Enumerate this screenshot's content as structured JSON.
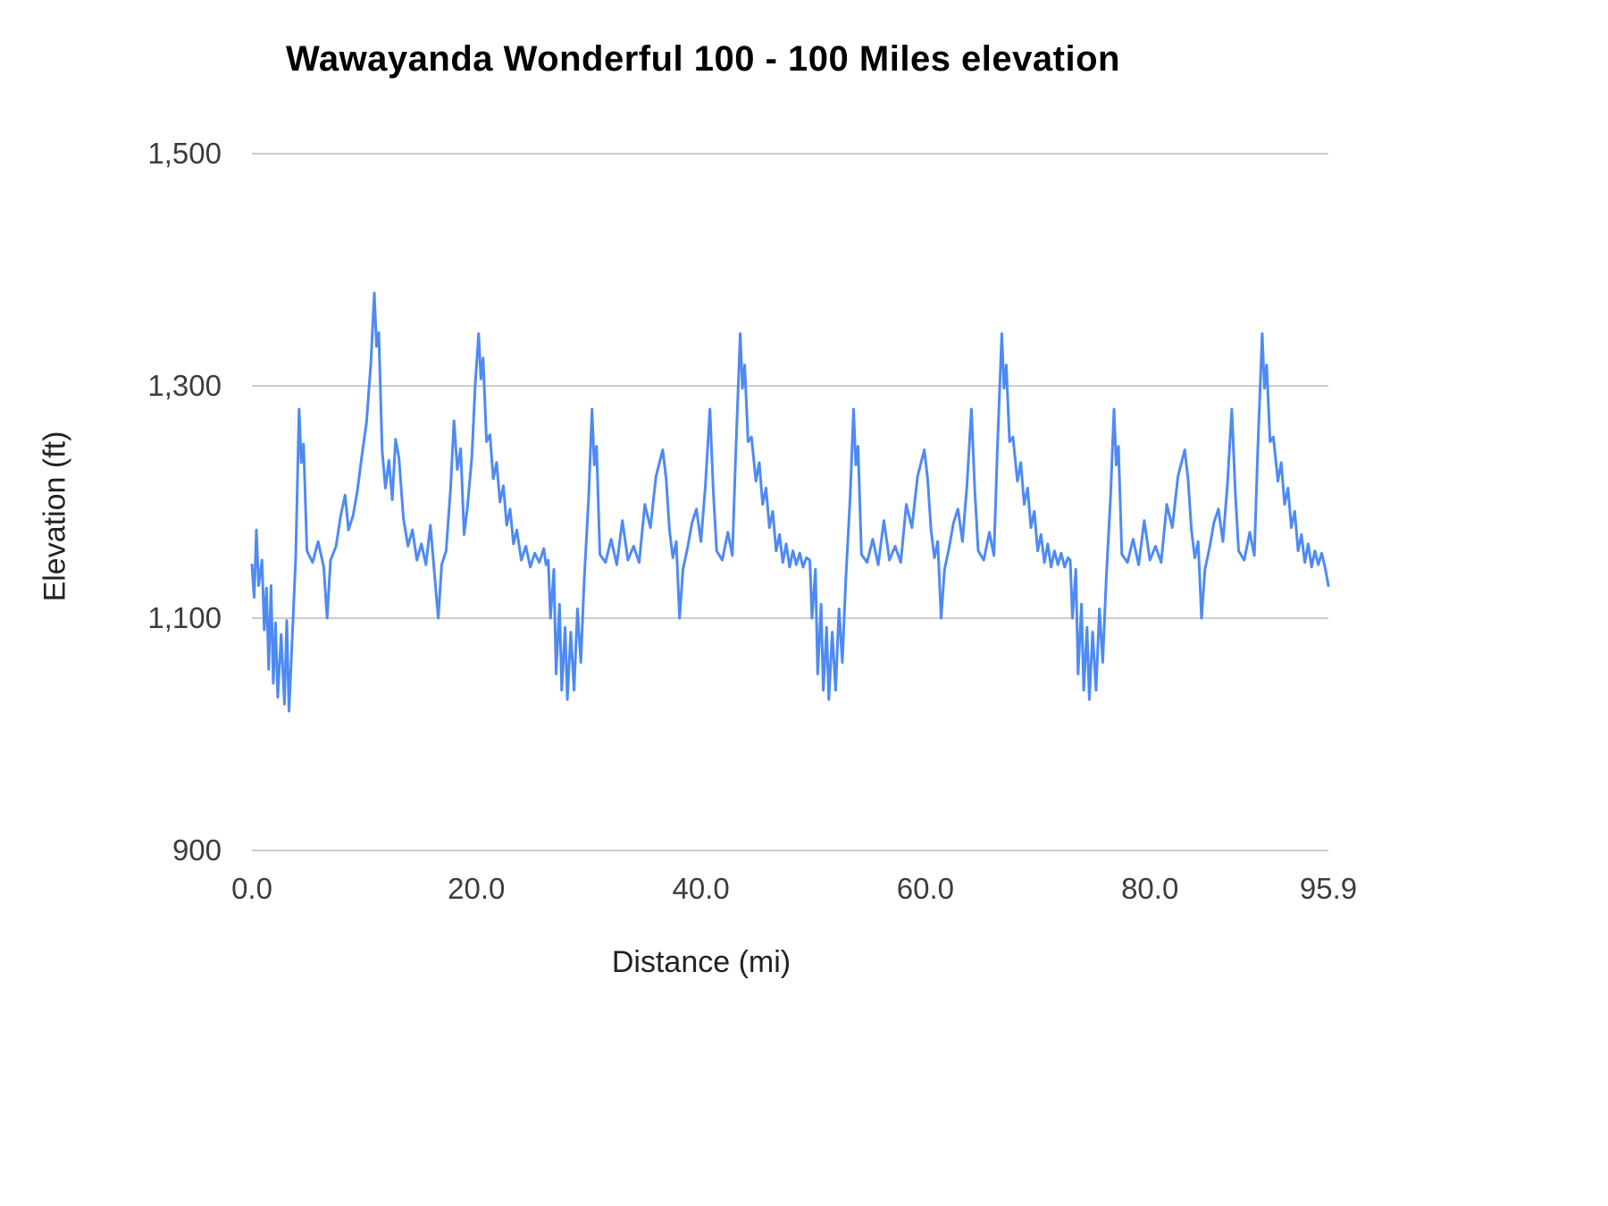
{
  "chart_data": {
    "type": "line",
    "title": "Wawayanda Wonderful 100 - 100 Miles elevation",
    "xlabel": "Distance (mi)",
    "ylabel": "Elevation (ft)",
    "xlim": [
      0,
      95.9
    ],
    "ylim": [
      900,
      1500
    ],
    "grid": "horizontal",
    "legend": "none",
    "line_color": "#4e8af4",
    "gridline_color": "#cccccc",
    "x_ticks": [
      {
        "value": 0,
        "label": "0.0"
      },
      {
        "value": 20,
        "label": "20.0"
      },
      {
        "value": 40,
        "label": "40.0"
      },
      {
        "value": 60,
        "label": "60.0"
      },
      {
        "value": 80,
        "label": "80.0"
      },
      {
        "value": 95.9,
        "label": "95.9"
      }
    ],
    "y_ticks": [
      {
        "value": 900,
        "label": "900"
      },
      {
        "value": 1100,
        "label": "1,100"
      },
      {
        "value": 1300,
        "label": "1,300"
      },
      {
        "value": 1500,
        "label": "1,500"
      }
    ],
    "series": [
      {
        "name": "Elevation",
        "points": [
          [
            0.0,
            1146
          ],
          [
            0.2,
            1118
          ],
          [
            0.4,
            1176
          ],
          [
            0.6,
            1128
          ],
          [
            0.9,
            1150
          ],
          [
            1.1,
            1090
          ],
          [
            1.3,
            1126
          ],
          [
            1.5,
            1056
          ],
          [
            1.7,
            1128
          ],
          [
            1.9,
            1044
          ],
          [
            2.1,
            1096
          ],
          [
            2.3,
            1032
          ],
          [
            2.6,
            1086
          ],
          [
            2.9,
            1026
          ],
          [
            3.1,
            1098
          ],
          [
            3.3,
            1020
          ],
          [
            3.6,
            1084
          ],
          [
            3.9,
            1152
          ],
          [
            4.2,
            1280
          ],
          [
            4.4,
            1234
          ],
          [
            4.6,
            1250
          ],
          [
            4.9,
            1158
          ],
          [
            5.4,
            1148
          ],
          [
            5.9,
            1166
          ],
          [
            6.4,
            1144
          ],
          [
            6.7,
            1100
          ],
          [
            7.0,
            1150
          ],
          [
            7.5,
            1162
          ],
          [
            7.9,
            1188
          ],
          [
            8.3,
            1206
          ],
          [
            8.6,
            1176
          ],
          [
            9.0,
            1188
          ],
          [
            9.4,
            1210
          ],
          [
            9.8,
            1240
          ],
          [
            10.2,
            1268
          ],
          [
            10.6,
            1320
          ],
          [
            10.9,
            1380
          ],
          [
            11.1,
            1334
          ],
          [
            11.3,
            1346
          ],
          [
            11.6,
            1244
          ],
          [
            11.9,
            1212
          ],
          [
            12.2,
            1236
          ],
          [
            12.5,
            1202
          ],
          [
            12.8,
            1254
          ],
          [
            13.1,
            1238
          ],
          [
            13.5,
            1186
          ],
          [
            13.9,
            1162
          ],
          [
            14.3,
            1176
          ],
          [
            14.7,
            1150
          ],
          [
            15.1,
            1164
          ],
          [
            15.5,
            1146
          ],
          [
            15.9,
            1180
          ],
          [
            16.3,
            1134
          ],
          [
            16.6,
            1100
          ],
          [
            16.9,
            1146
          ],
          [
            17.3,
            1158
          ],
          [
            17.7,
            1212
          ],
          [
            18.0,
            1270
          ],
          [
            18.3,
            1228
          ],
          [
            18.6,
            1246
          ],
          [
            18.9,
            1172
          ],
          [
            19.2,
            1196
          ],
          [
            19.6,
            1240
          ],
          [
            19.9,
            1302
          ],
          [
            20.2,
            1345
          ],
          [
            20.4,
            1306
          ],
          [
            20.6,
            1324
          ],
          [
            20.9,
            1252
          ],
          [
            21.2,
            1258
          ],
          [
            21.5,
            1220
          ],
          [
            21.8,
            1234
          ],
          [
            22.1,
            1200
          ],
          [
            22.4,
            1214
          ],
          [
            22.7,
            1180
          ],
          [
            23.0,
            1194
          ],
          [
            23.3,
            1164
          ],
          [
            23.6,
            1176
          ],
          [
            24.0,
            1150
          ],
          [
            24.4,
            1162
          ],
          [
            24.8,
            1144
          ],
          [
            25.2,
            1156
          ],
          [
            25.6,
            1148
          ],
          [
            26.0,
            1160
          ],
          [
            26.2,
            1146
          ],
          [
            26.4,
            1150
          ],
          [
            26.6,
            1100
          ],
          [
            26.9,
            1142
          ],
          [
            27.1,
            1052
          ],
          [
            27.4,
            1112
          ],
          [
            27.6,
            1038
          ],
          [
            27.9,
            1092
          ],
          [
            28.1,
            1030
          ],
          [
            28.4,
            1088
          ],
          [
            28.7,
            1038
          ],
          [
            29.0,
            1108
          ],
          [
            29.3,
            1062
          ],
          [
            29.6,
            1132
          ],
          [
            30.0,
            1205
          ],
          [
            30.3,
            1280
          ],
          [
            30.5,
            1232
          ],
          [
            30.7,
            1248
          ],
          [
            31.0,
            1155
          ],
          [
            31.5,
            1148
          ],
          [
            32.0,
            1168
          ],
          [
            32.5,
            1146
          ],
          [
            33.0,
            1184
          ],
          [
            33.5,
            1150
          ],
          [
            34.0,
            1162
          ],
          [
            34.5,
            1148
          ],
          [
            35.0,
            1198
          ],
          [
            35.5,
            1178
          ],
          [
            36.0,
            1222
          ],
          [
            36.6,
            1245
          ],
          [
            36.9,
            1220
          ],
          [
            37.2,
            1176
          ],
          [
            37.5,
            1152
          ],
          [
            37.8,
            1166
          ],
          [
            38.1,
            1100
          ],
          [
            38.4,
            1142
          ],
          [
            38.8,
            1160
          ],
          [
            39.2,
            1182
          ],
          [
            39.6,
            1194
          ],
          [
            40.0,
            1166
          ],
          [
            40.4,
            1214
          ],
          [
            40.8,
            1280
          ],
          [
            41.1,
            1210
          ],
          [
            41.4,
            1158
          ],
          [
            41.9,
            1150
          ],
          [
            42.4,
            1174
          ],
          [
            42.8,
            1154
          ],
          [
            43.1,
            1242
          ],
          [
            43.5,
            1345
          ],
          [
            43.7,
            1298
          ],
          [
            43.9,
            1318
          ],
          [
            44.2,
            1252
          ],
          [
            44.5,
            1256
          ],
          [
            44.9,
            1218
          ],
          [
            45.2,
            1234
          ],
          [
            45.5,
            1198
          ],
          [
            45.8,
            1212
          ],
          [
            46.1,
            1178
          ],
          [
            46.4,
            1192
          ],
          [
            46.7,
            1158
          ],
          [
            47.0,
            1172
          ],
          [
            47.3,
            1148
          ],
          [
            47.6,
            1164
          ],
          [
            47.9,
            1144
          ],
          [
            48.2,
            1158
          ],
          [
            48.5,
            1146
          ],
          [
            48.8,
            1156
          ],
          [
            49.1,
            1144
          ],
          [
            49.4,
            1152
          ],
          [
            49.7,
            1150
          ],
          [
            49.9,
            1100
          ],
          [
            50.2,
            1142
          ],
          [
            50.4,
            1052
          ],
          [
            50.7,
            1112
          ],
          [
            50.9,
            1038
          ],
          [
            51.2,
            1092
          ],
          [
            51.4,
            1030
          ],
          [
            51.7,
            1088
          ],
          [
            52.0,
            1038
          ],
          [
            52.3,
            1108
          ],
          [
            52.6,
            1062
          ],
          [
            52.9,
            1132
          ],
          [
            53.3,
            1205
          ],
          [
            53.6,
            1280
          ],
          [
            53.8,
            1232
          ],
          [
            54.0,
            1248
          ],
          [
            54.3,
            1155
          ],
          [
            54.8,
            1148
          ],
          [
            55.3,
            1168
          ],
          [
            55.8,
            1146
          ],
          [
            56.3,
            1184
          ],
          [
            56.8,
            1150
          ],
          [
            57.3,
            1162
          ],
          [
            57.8,
            1148
          ],
          [
            58.3,
            1198
          ],
          [
            58.8,
            1178
          ],
          [
            59.3,
            1222
          ],
          [
            59.9,
            1245
          ],
          [
            60.2,
            1220
          ],
          [
            60.5,
            1176
          ],
          [
            60.8,
            1152
          ],
          [
            61.1,
            1166
          ],
          [
            61.4,
            1100
          ],
          [
            61.7,
            1142
          ],
          [
            62.1,
            1160
          ],
          [
            62.5,
            1182
          ],
          [
            62.9,
            1194
          ],
          [
            63.3,
            1166
          ],
          [
            63.7,
            1214
          ],
          [
            64.1,
            1280
          ],
          [
            64.4,
            1210
          ],
          [
            64.7,
            1158
          ],
          [
            65.2,
            1150
          ],
          [
            65.7,
            1174
          ],
          [
            66.1,
            1154
          ],
          [
            66.4,
            1242
          ],
          [
            66.8,
            1345
          ],
          [
            67.0,
            1298
          ],
          [
            67.2,
            1318
          ],
          [
            67.5,
            1252
          ],
          [
            67.8,
            1256
          ],
          [
            68.2,
            1218
          ],
          [
            68.5,
            1234
          ],
          [
            68.8,
            1198
          ],
          [
            69.1,
            1212
          ],
          [
            69.4,
            1178
          ],
          [
            69.7,
            1192
          ],
          [
            70.0,
            1158
          ],
          [
            70.3,
            1172
          ],
          [
            70.6,
            1148
          ],
          [
            70.9,
            1164
          ],
          [
            71.2,
            1144
          ],
          [
            71.5,
            1158
          ],
          [
            71.8,
            1146
          ],
          [
            72.1,
            1156
          ],
          [
            72.4,
            1144
          ],
          [
            72.7,
            1152
          ],
          [
            72.9,
            1150
          ],
          [
            73.1,
            1100
          ],
          [
            73.4,
            1142
          ],
          [
            73.6,
            1052
          ],
          [
            73.9,
            1112
          ],
          [
            74.1,
            1038
          ],
          [
            74.4,
            1092
          ],
          [
            74.6,
            1030
          ],
          [
            74.9,
            1088
          ],
          [
            75.2,
            1038
          ],
          [
            75.5,
            1108
          ],
          [
            75.8,
            1062
          ],
          [
            76.1,
            1132
          ],
          [
            76.5,
            1205
          ],
          [
            76.8,
            1280
          ],
          [
            77.0,
            1232
          ],
          [
            77.2,
            1248
          ],
          [
            77.5,
            1155
          ],
          [
            78.0,
            1148
          ],
          [
            78.5,
            1168
          ],
          [
            79.0,
            1146
          ],
          [
            79.5,
            1184
          ],
          [
            80.0,
            1150
          ],
          [
            80.5,
            1162
          ],
          [
            81.0,
            1148
          ],
          [
            81.5,
            1198
          ],
          [
            82.0,
            1178
          ],
          [
            82.5,
            1222
          ],
          [
            83.1,
            1245
          ],
          [
            83.4,
            1220
          ],
          [
            83.7,
            1176
          ],
          [
            84.0,
            1152
          ],
          [
            84.3,
            1166
          ],
          [
            84.6,
            1100
          ],
          [
            84.9,
            1142
          ],
          [
            85.3,
            1160
          ],
          [
            85.7,
            1182
          ],
          [
            86.1,
            1194
          ],
          [
            86.5,
            1166
          ],
          [
            86.9,
            1214
          ],
          [
            87.3,
            1280
          ],
          [
            87.6,
            1210
          ],
          [
            87.9,
            1158
          ],
          [
            88.4,
            1150
          ],
          [
            88.9,
            1174
          ],
          [
            89.3,
            1154
          ],
          [
            89.6,
            1242
          ],
          [
            90.0,
            1345
          ],
          [
            90.2,
            1298
          ],
          [
            90.4,
            1318
          ],
          [
            90.7,
            1252
          ],
          [
            91.0,
            1256
          ],
          [
            91.4,
            1218
          ],
          [
            91.7,
            1234
          ],
          [
            92.0,
            1198
          ],
          [
            92.3,
            1212
          ],
          [
            92.6,
            1178
          ],
          [
            92.9,
            1192
          ],
          [
            93.2,
            1158
          ],
          [
            93.5,
            1172
          ],
          [
            93.8,
            1148
          ],
          [
            94.1,
            1164
          ],
          [
            94.4,
            1144
          ],
          [
            94.7,
            1158
          ],
          [
            95.0,
            1146
          ],
          [
            95.3,
            1156
          ],
          [
            95.6,
            1144
          ],
          [
            95.9,
            1128
          ]
        ]
      }
    ]
  }
}
